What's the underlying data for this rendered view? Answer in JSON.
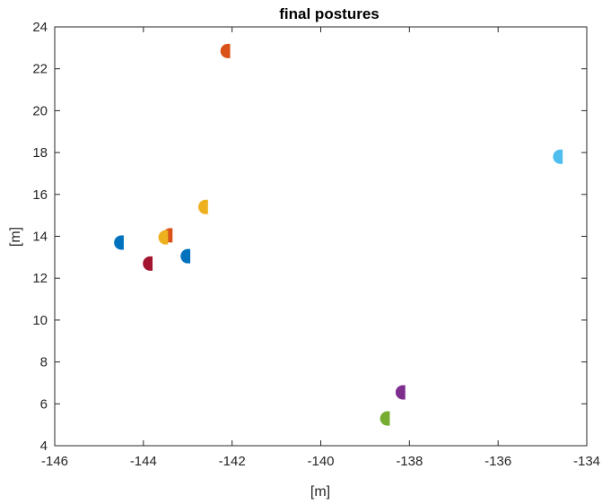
{
  "chart_data": {
    "type": "scatter",
    "title": "final postures",
    "xlabel": "[m]",
    "ylabel": "[m]",
    "xlim": [
      -146,
      -134
    ],
    "ylim": [
      4,
      24
    ],
    "xticks": [
      -146,
      -144,
      -142,
      -140,
      -138,
      -136,
      -134
    ],
    "yticks": [
      4,
      6,
      8,
      10,
      12,
      14,
      16,
      18,
      20,
      22,
      24
    ],
    "grid": false,
    "marker": "half-disc (vehicle posture)",
    "points": [
      {
        "x": -142.1,
        "y": 22.85,
        "color": "#D95319"
      },
      {
        "x": -134.6,
        "y": 17.8,
        "color": "#4DBEEE"
      },
      {
        "x": -142.6,
        "y": 15.4,
        "color": "#EDB120"
      },
      {
        "x": -144.5,
        "y": 13.7,
        "color": "#0072BD"
      },
      {
        "x": -143.4,
        "y": 14.05,
        "color": "#D95319"
      },
      {
        "x": -143.5,
        "y": 13.95,
        "color": "#EDB120"
      },
      {
        "x": -143.0,
        "y": 13.05,
        "color": "#0072BD"
      },
      {
        "x": -143.85,
        "y": 12.7,
        "color": "#A2142F"
      },
      {
        "x": -138.15,
        "y": 6.55,
        "color": "#7E2F8E"
      },
      {
        "x": -138.5,
        "y": 5.3,
        "color": "#77AC30"
      }
    ]
  }
}
